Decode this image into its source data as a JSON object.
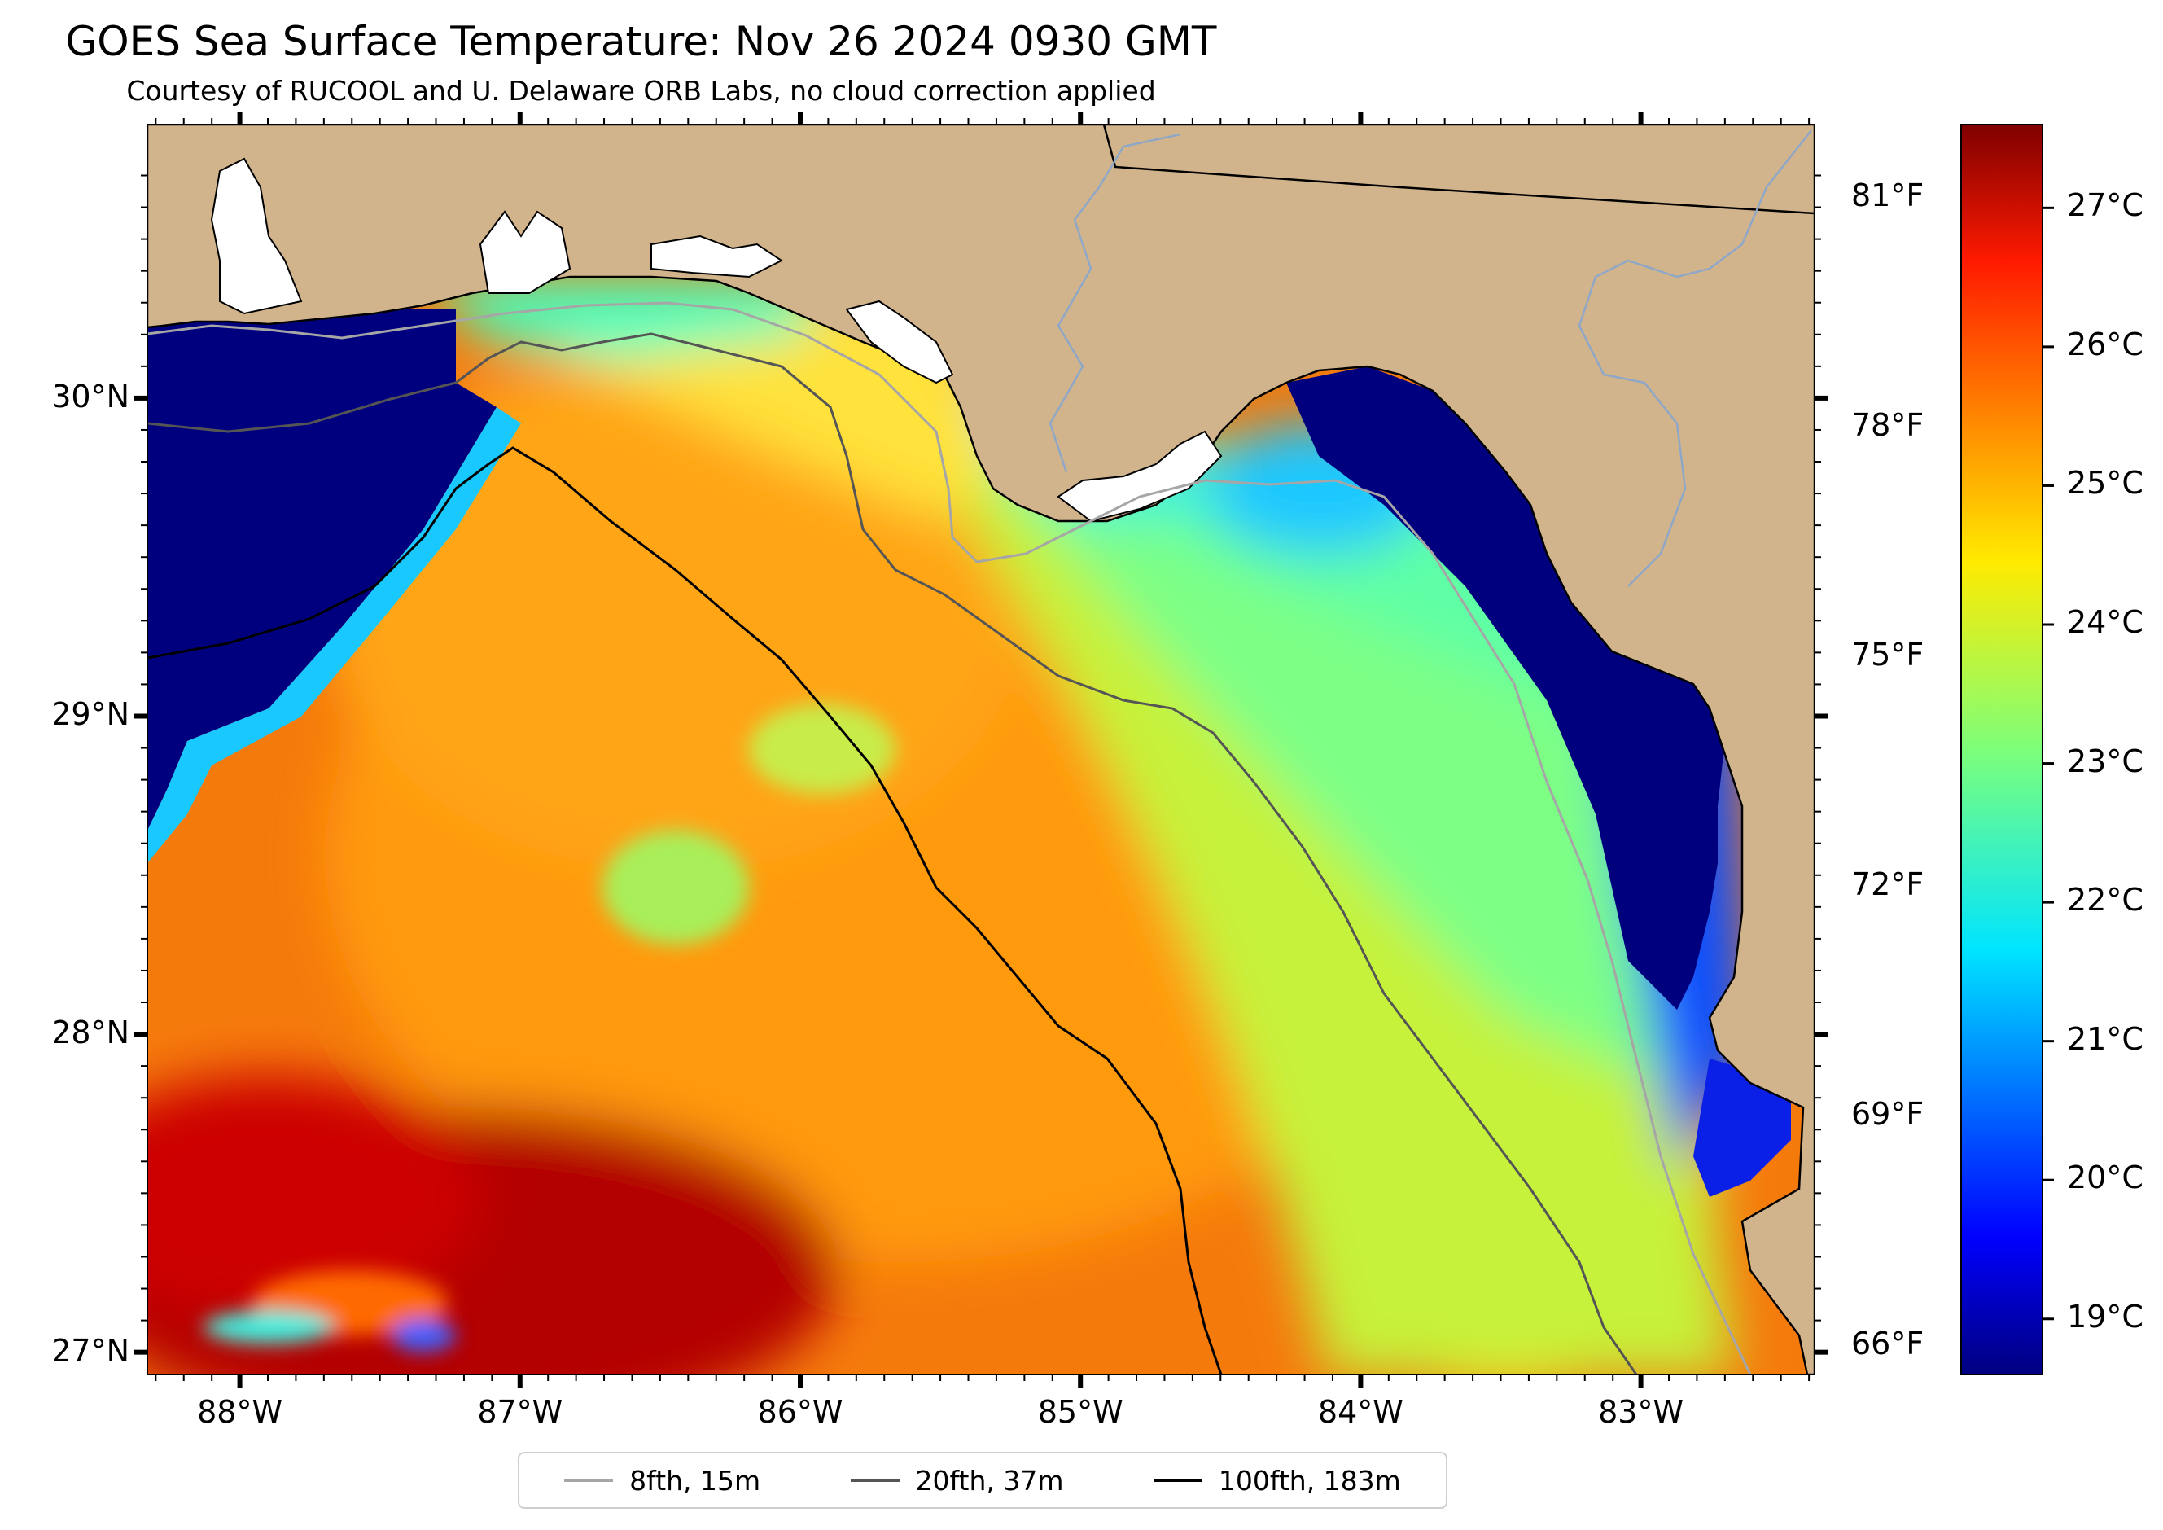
{
  "title": "GOES Sea Surface Temperature: Nov 26 2024 0930 GMT",
  "subtitle": "Courtesy of RUCOOL and U. Delaware ORB Labs, no cloud correction applied",
  "map": {
    "lon_range": [
      -88.33,
      -82.38
    ],
    "lat_range": [
      26.93,
      30.86
    ],
    "lon_ticks": [
      "88°W",
      "87°W",
      "86°W",
      "85°W",
      "84°W",
      "83°W"
    ],
    "lat_ticks": [
      "30°N",
      "29°N",
      "28°N",
      "27°N"
    ],
    "fahrenheit_ticks": [
      "81°F",
      "78°F",
      "75°F",
      "72°F",
      "69°F",
      "66°F"
    ],
    "land_color": "#d2b48c",
    "colormap": "jet"
  },
  "colorbar": {
    "range_c": [
      18.6,
      27.6
    ],
    "labels": [
      "27°C",
      "26°C",
      "25°C",
      "24°C",
      "23°C",
      "22°C",
      "21°C",
      "20°C",
      "19°C"
    ]
  },
  "legend": {
    "items": [
      {
        "label": "8fth, 15m",
        "color": "#a6a6a6"
      },
      {
        "label": "20fth, 37m",
        "color": "#555555"
      },
      {
        "label": "100fth, 183m",
        "color": "#000000"
      }
    ]
  }
}
